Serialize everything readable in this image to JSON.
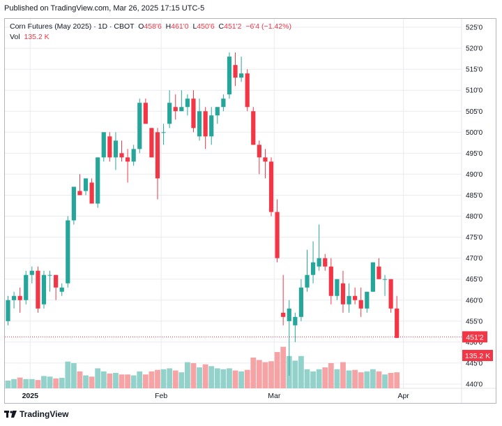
{
  "header": {
    "published": "Published on TradingView.com, Mar 26, 2025 17:15 UTC-5"
  },
  "legend": {
    "symbol": "Corn Futures (May 2025)",
    "interval": "1D",
    "exchange": "CBOT",
    "open_label": "O",
    "open": "458'6",
    "high_label": "H",
    "high": "461'0",
    "low_label": "L",
    "low": "450'6",
    "close_label": "C",
    "close": "451'2",
    "change": "−6'4 (−1.42%)",
    "vol_label": "Vol",
    "vol": "135.2 K"
  },
  "price_tag": {
    "label": "451'2"
  },
  "volume_tag": {
    "label": "135.2 K"
  },
  "footer": {
    "brand": "TradingView"
  },
  "colors": {
    "up": "#26a69a",
    "down": "#f23645",
    "vol_up": "#93d1cb",
    "vol_down": "#f6a3a6",
    "grid": "#e9ebf0",
    "axis_text": "#131722"
  },
  "chart_data": {
    "type": "candlestick",
    "title": "Corn Futures (May 2025) · 1D · CBOT",
    "ylim": [
      439,
      527
    ],
    "y_ticks": [
      "525'0",
      "520'0",
      "515'0",
      "510'0",
      "505'0",
      "500'0",
      "495'0",
      "490'0",
      "485'0",
      "480'0",
      "475'0",
      "470'0",
      "465'0",
      "460'0",
      "455'0",
      "450'0",
      "445'0",
      "440'0"
    ],
    "y_tick_values": [
      525,
      520,
      515,
      510,
      505,
      500,
      495,
      490,
      485,
      480,
      475,
      470,
      465,
      460,
      455,
      450,
      445,
      440
    ],
    "x_ticks": [
      {
        "label": "2025",
        "index": 3.7,
        "bold": true
      },
      {
        "label": "Feb",
        "index": 25.6,
        "bold": false
      },
      {
        "label": "Mar",
        "index": 44.5,
        "bold": false
      },
      {
        "label": "Apr",
        "index": 66.1,
        "bold": false
      }
    ],
    "last_price": 451.25,
    "volume_max_ratio": 1.0,
    "candles": [
      {
        "o": 455,
        "h": 461,
        "l": 454,
        "c": 460,
        "v": 0.25
      },
      {
        "o": 460,
        "h": 462,
        "l": 458,
        "c": 461,
        "v": 0.3
      },
      {
        "o": 461,
        "h": 463,
        "l": 457,
        "c": 460,
        "v": 0.35
      },
      {
        "o": 460,
        "h": 467,
        "l": 459,
        "c": 466,
        "v": 0.3
      },
      {
        "o": 466,
        "h": 468,
        "l": 464,
        "c": 467,
        "v": 0.3
      },
      {
        "o": 467,
        "h": 468,
        "l": 457,
        "c": 458,
        "v": 0.27
      },
      {
        "o": 459,
        "h": 467,
        "l": 458,
        "c": 466,
        "v": 0.4
      },
      {
        "o": 466,
        "h": 467,
        "l": 462,
        "c": 466,
        "v": 0.38
      },
      {
        "o": 466,
        "h": 466,
        "l": 460,
        "c": 463,
        "v": 0.32
      },
      {
        "o": 462,
        "h": 464,
        "l": 461,
        "c": 463,
        "v": 0.34
      },
      {
        "o": 464,
        "h": 480,
        "l": 463,
        "c": 479,
        "v": 0.87
      },
      {
        "o": 479,
        "h": 487,
        "l": 478,
        "c": 487,
        "v": 0.82
      },
      {
        "o": 486,
        "h": 490,
        "l": 485,
        "c": 485,
        "v": 0.55
      },
      {
        "o": 486,
        "h": 489,
        "l": 485,
        "c": 489,
        "v": 0.42
      },
      {
        "o": 488,
        "h": 489,
        "l": 483,
        "c": 483,
        "v": 0.38
      },
      {
        "o": 483,
        "h": 494,
        "l": 482,
        "c": 494,
        "v": 0.65
      },
      {
        "o": 494,
        "h": 500,
        "l": 493,
        "c": 500,
        "v": 0.55
      },
      {
        "o": 499,
        "h": 500,
        "l": 493,
        "c": 494,
        "v": 0.48
      },
      {
        "o": 494,
        "h": 500,
        "l": 491,
        "c": 498,
        "v": 0.5
      },
      {
        "o": 495,
        "h": 498,
        "l": 493,
        "c": 494,
        "v": 0.45
      },
      {
        "o": 494,
        "h": 496,
        "l": 488,
        "c": 493,
        "v": 0.45
      },
      {
        "o": 493,
        "h": 497,
        "l": 492,
        "c": 496,
        "v": 0.42
      },
      {
        "o": 496,
        "h": 508,
        "l": 495,
        "c": 507,
        "v": 0.55
      },
      {
        "o": 507,
        "h": 508,
        "l": 502,
        "c": 502,
        "v": 0.45
      },
      {
        "o": 501,
        "h": 501,
        "l": 494,
        "c": 494,
        "v": 0.55
      },
      {
        "o": 500,
        "h": 501,
        "l": 484,
        "c": 489,
        "v": 0.6
      },
      {
        "o": 500,
        "h": 502,
        "l": 497,
        "c": 500,
        "v": 0.62
      },
      {
        "o": 502,
        "h": 510,
        "l": 501,
        "c": 507,
        "v": 0.65
      },
      {
        "o": 506,
        "h": 509,
        "l": 503,
        "c": 505,
        "v": 0.58
      },
      {
        "o": 505,
        "h": 510,
        "l": 505,
        "c": 506,
        "v": 0.52
      },
      {
        "o": 506,
        "h": 509,
        "l": 504,
        "c": 508,
        "v": 0.85
      },
      {
        "o": 508,
        "h": 510,
        "l": 500,
        "c": 501,
        "v": 0.82
      },
      {
        "o": 499,
        "h": 508,
        "l": 498,
        "c": 505,
        "v": 0.68
      },
      {
        "o": 505,
        "h": 506,
        "l": 496,
        "c": 499,
        "v": 0.78
      },
      {
        "o": 499,
        "h": 506,
        "l": 497,
        "c": 504,
        "v": 0.72
      },
      {
        "o": 504,
        "h": 506,
        "l": 502,
        "c": 506,
        "v": 0.65
      },
      {
        "o": 506,
        "h": 509,
        "l": 505,
        "c": 508,
        "v": 0.62
      },
      {
        "o": 509,
        "h": 519,
        "l": 508,
        "c": 518,
        "v": 0.65
      },
      {
        "o": 516,
        "h": 519,
        "l": 511,
        "c": 513,
        "v": 0.58
      },
      {
        "o": 513,
        "h": 518,
        "l": 512,
        "c": 514,
        "v": 0.55
      },
      {
        "o": 514,
        "h": 515,
        "l": 505,
        "c": 506,
        "v": 0.6
      },
      {
        "o": 505,
        "h": 506,
        "l": 497,
        "c": 497,
        "v": 1.0
      },
      {
        "o": 497,
        "h": 498,
        "l": 490,
        "c": 494,
        "v": 0.92
      },
      {
        "o": 494,
        "h": 496,
        "l": 489,
        "c": 493,
        "v": 0.85
      },
      {
        "o": 493,
        "h": 494,
        "l": 480,
        "c": 481,
        "v": 0.88
      },
      {
        "o": 481,
        "h": 484,
        "l": 469,
        "c": 470,
        "v": 1.18
      },
      {
        "o": 457,
        "h": 466,
        "l": 454,
        "c": 456,
        "v": 1.35
      },
      {
        "o": 455,
        "h": 460,
        "l": 442,
        "c": 458,
        "v": 1.05
      },
      {
        "o": 454,
        "h": 457,
        "l": 450,
        "c": 456,
        "v": 0.9
      },
      {
        "o": 456,
        "h": 465,
        "l": 455,
        "c": 463,
        "v": 1.05
      },
      {
        "o": 463,
        "h": 472,
        "l": 462,
        "c": 466,
        "v": 0.62
      },
      {
        "o": 466,
        "h": 474,
        "l": 464,
        "c": 469,
        "v": 0.55
      },
      {
        "o": 468,
        "h": 478,
        "l": 467,
        "c": 470,
        "v": 0.62
      },
      {
        "o": 470,
        "h": 471,
        "l": 467,
        "c": 468,
        "v": 0.68
      },
      {
        "o": 468,
        "h": 470,
        "l": 459,
        "c": 461,
        "v": 0.82
      },
      {
        "o": 461,
        "h": 465,
        "l": 460,
        "c": 465,
        "v": 0.62
      },
      {
        "o": 464,
        "h": 467,
        "l": 457,
        "c": 459,
        "v": 0.85
      },
      {
        "o": 459,
        "h": 464,
        "l": 457,
        "c": 461,
        "v": 0.58
      },
      {
        "o": 461,
        "h": 463,
        "l": 459,
        "c": 460,
        "v": 0.6
      },
      {
        "o": 460,
        "h": 463,
        "l": 456,
        "c": 458,
        "v": 0.52
      },
      {
        "o": 458,
        "h": 462,
        "l": 457,
        "c": 462,
        "v": 0.55
      },
      {
        "o": 462,
        "h": 469,
        "l": 462,
        "c": 469,
        "v": 0.62
      },
      {
        "o": 468,
        "h": 470,
        "l": 465,
        "c": 465,
        "v": 0.55
      },
      {
        "o": 465,
        "h": 466,
        "l": 461,
        "c": 465,
        "v": 0.45
      },
      {
        "o": 465,
        "h": 465,
        "l": 457,
        "c": 458,
        "v": 0.5
      },
      {
        "o": 458,
        "h": 461,
        "l": 451,
        "c": 451,
        "v": 0.52
      }
    ]
  }
}
